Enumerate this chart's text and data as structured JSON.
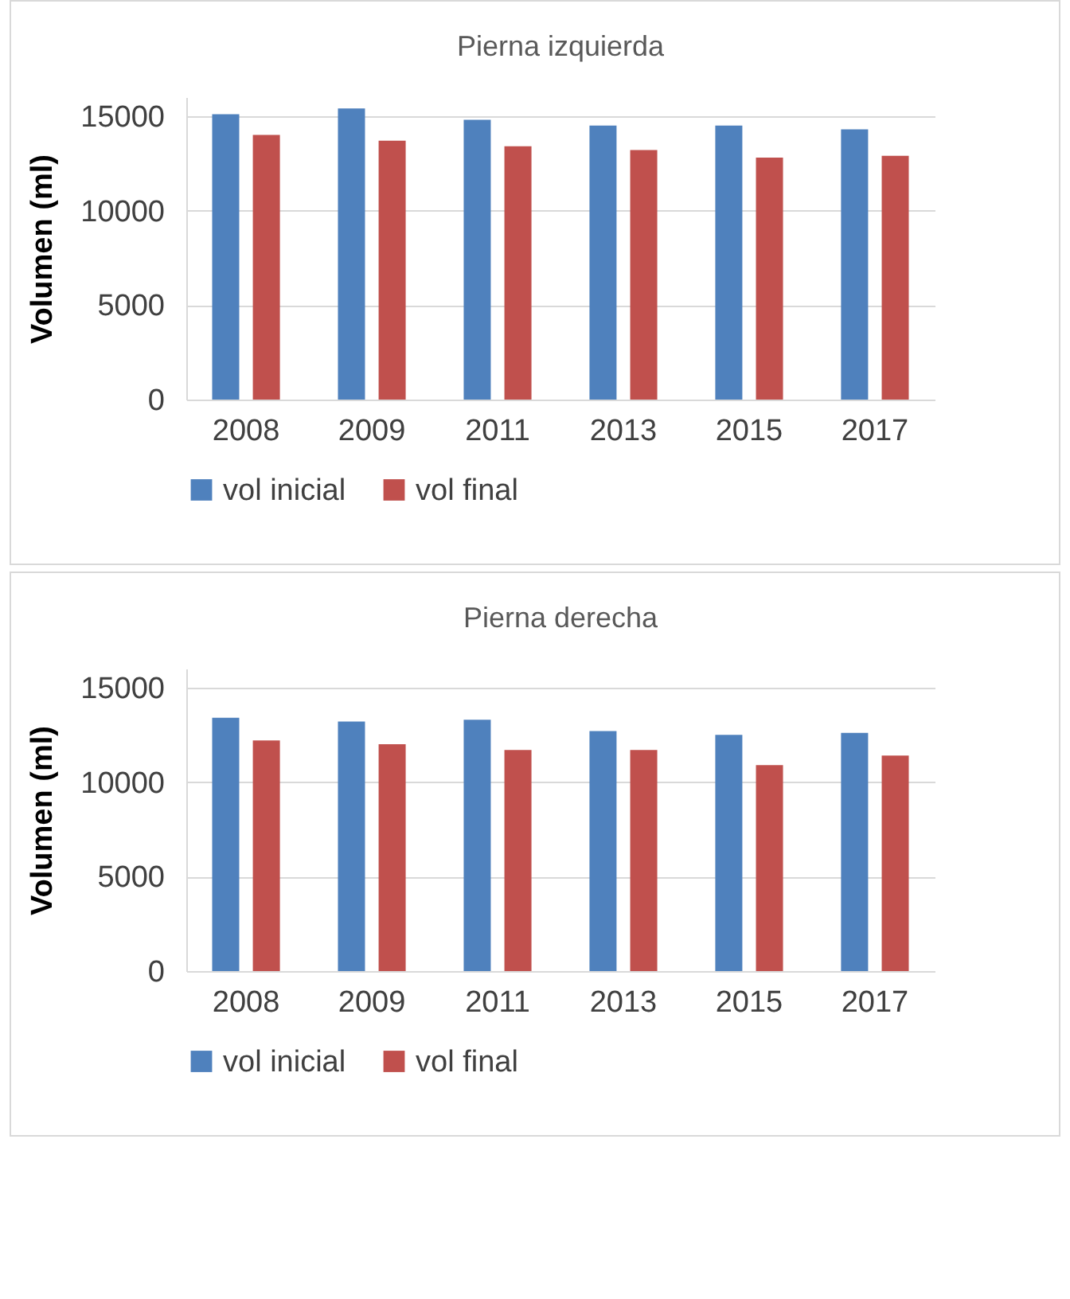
{
  "chart_data": [
    {
      "type": "bar",
      "title": "Pierna izquierda",
      "ylabel": "Volumen (ml)",
      "categories": [
        "2008",
        "2009",
        "2011",
        "2013",
        "2015",
        "2017"
      ],
      "series": [
        {
          "name": "vol inicial",
          "color": "#4f81bd",
          "values": [
            15100,
            15400,
            14800,
            14500,
            14500,
            14300
          ]
        },
        {
          "name": "vol final",
          "color": "#c0504d",
          "values": [
            14000,
            13700,
            13400,
            13200,
            12800,
            12900
          ]
        }
      ],
      "ylim": [
        0,
        16000
      ],
      "yticks": [
        0,
        5000,
        10000,
        15000
      ],
      "grid": "y",
      "legend": "bottom"
    },
    {
      "type": "bar",
      "title": "Pierna derecha",
      "ylabel": "Volumen (ml)",
      "categories": [
        "2008",
        "2009",
        "2011",
        "2013",
        "2015",
        "2017"
      ],
      "series": [
        {
          "name": "vol inicial",
          "color": "#4f81bd",
          "values": [
            13400,
            13200,
            13300,
            12700,
            12500,
            12600
          ]
        },
        {
          "name": "vol final",
          "color": "#c0504d",
          "values": [
            12200,
            12000,
            11700,
            11700,
            10900,
            11400
          ]
        }
      ],
      "ylim": [
        0,
        16000
      ],
      "yticks": [
        0,
        5000,
        10000,
        15000
      ],
      "grid": "y",
      "legend": "bottom"
    }
  ]
}
